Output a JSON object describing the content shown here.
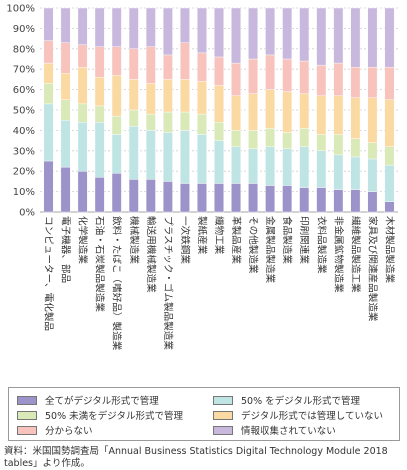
{
  "chart_data": {
    "type": "bar",
    "stacked": true,
    "categories": [
      "コンピューター、電化製品",
      "電子機器、部品",
      "化学製造業",
      "石油・石炭製品製造業",
      "飲料・たばこ（嗜好品）製造業",
      "機械製造業",
      "輸送用機械製造業",
      "プラスチック・ゴム製品製造業",
      "一次鉄鋼業",
      "製紙産業",
      "織物工業",
      "革製品産業",
      "その他製造業",
      "金属製品製造業",
      "食品製造業",
      "印刷関連業",
      "衣料品製造業",
      "非金属鉱物製造業",
      "繊維製品製造工業",
      "家具及び関連産品製造業",
      "木材製品製造業"
    ],
    "series": [
      {
        "name": "全てがデジタル形式で管理",
        "color": "#9b93c9",
        "values": [
          25,
          22,
          20,
          17,
          19,
          16,
          16,
          15,
          14,
          14,
          14,
          14,
          14,
          13,
          13,
          12,
          12,
          11,
          11,
          10,
          5
        ]
      },
      {
        "name": "50% をデジタル形式で管理",
        "color": "#bfe4e4",
        "values": [
          28,
          23,
          24,
          27,
          19,
          26,
          24,
          24,
          26,
          24,
          21,
          18,
          17,
          19,
          18,
          20,
          18,
          17,
          16,
          16,
          18
        ]
      },
      {
        "name": "50% 未満をデジタル形式で管理",
        "color": "#d9e9b8",
        "values": [
          10,
          10,
          9,
          8,
          9,
          8,
          8,
          10,
          9,
          10,
          9,
          8,
          9,
          9,
          8,
          9,
          8,
          10,
          9,
          8,
          9
        ]
      },
      {
        "name": "デジタル形式では管理していない",
        "color": "#fbd9a3",
        "values": [
          10,
          13,
          18,
          14,
          20,
          15,
          15,
          16,
          16,
          16,
          18,
          17,
          18,
          19,
          20,
          17,
          19,
          19,
          20,
          22,
          23
        ]
      },
      {
        "name": "分からない",
        "color": "#f7c3bc",
        "values": [
          11,
          15,
          11,
          15,
          14,
          15,
          18,
          12,
          18,
          14,
          14,
          16,
          17,
          17,
          16,
          16,
          15,
          16,
          15,
          15,
          16
        ]
      },
      {
        "name": "情報収集されていない",
        "color": "#c8b8dd",
        "values": [
          16,
          17,
          18,
          19,
          19,
          20,
          19,
          23,
          17,
          22,
          24,
          27,
          25,
          23,
          25,
          26,
          28,
          27,
          29,
          29,
          29
        ]
      }
    ],
    "y_ticks": [
      "0%",
      "10%",
      "20%",
      "30%",
      "40%",
      "50%",
      "60%",
      "70%",
      "80%",
      "90%",
      "100%"
    ],
    "ylim": [
      0,
      100
    ],
    "grid": true,
    "legend_position": "bottom"
  },
  "source_note": "資料：米国国勢調査局「Annual Business Statistics Digital Technology Module 2018 tables」より作成。"
}
